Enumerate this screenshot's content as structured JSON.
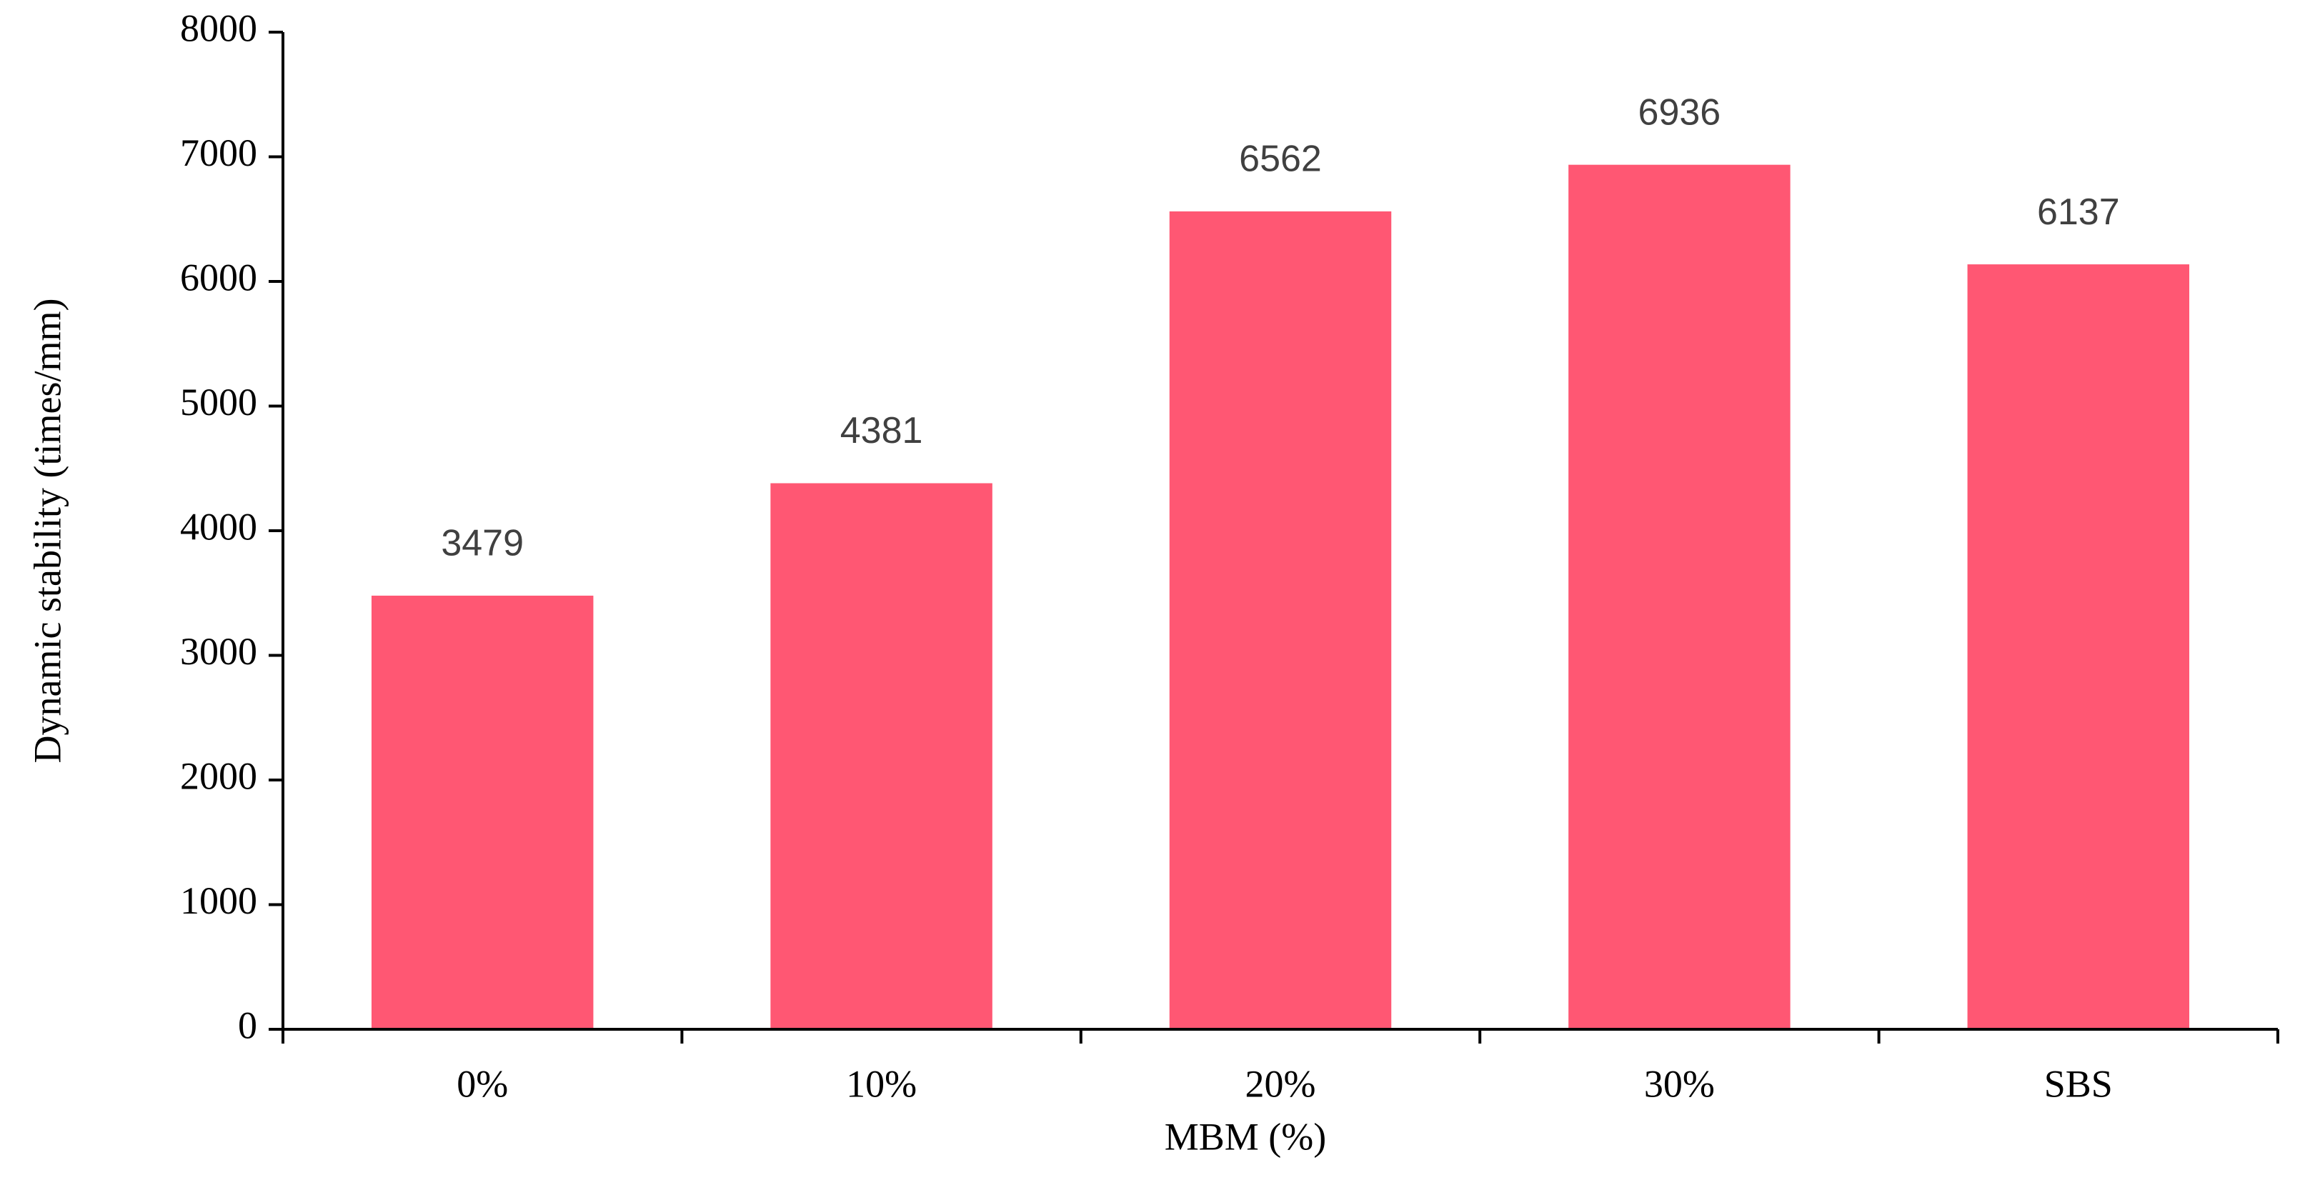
{
  "chart_data": {
    "type": "bar",
    "x_label": "MBM (%)",
    "y_label": "Dynamic stability (times/mm)",
    "categories": [
      "0%",
      "10%",
      "20%",
      "30%",
      "SBS"
    ],
    "values": [
      3479,
      4381,
      6562,
      6936,
      6137
    ],
    "color": "#ff5773",
    "ylim": [
      0,
      8000
    ],
    "yticks": [
      0,
      1000,
      2000,
      3000,
      4000,
      5000,
      6000,
      7000,
      8000
    ],
    "grid": false
  }
}
